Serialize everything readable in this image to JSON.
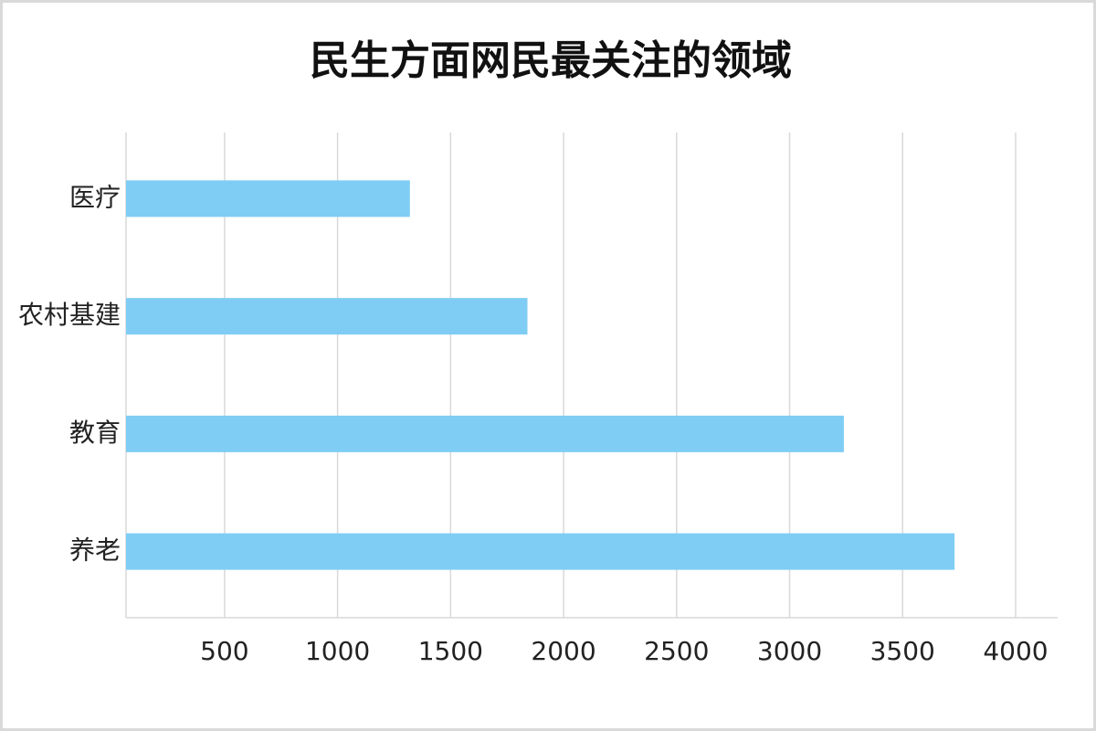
{
  "chart_data": {
    "type": "bar",
    "orientation": "horizontal",
    "title": "民生方面网民最关注的领域",
    "categories": [
      "医疗",
      "农村基建",
      "教育",
      "养老"
    ],
    "values": [
      1320,
      1840,
      3240,
      3730
    ],
    "color": "#7fcdf4",
    "xlim": [
      64,
      4186
    ],
    "xticks": [
      500,
      1000,
      1500,
      2000,
      2500,
      3000,
      3500,
      4000
    ],
    "grid": true
  }
}
